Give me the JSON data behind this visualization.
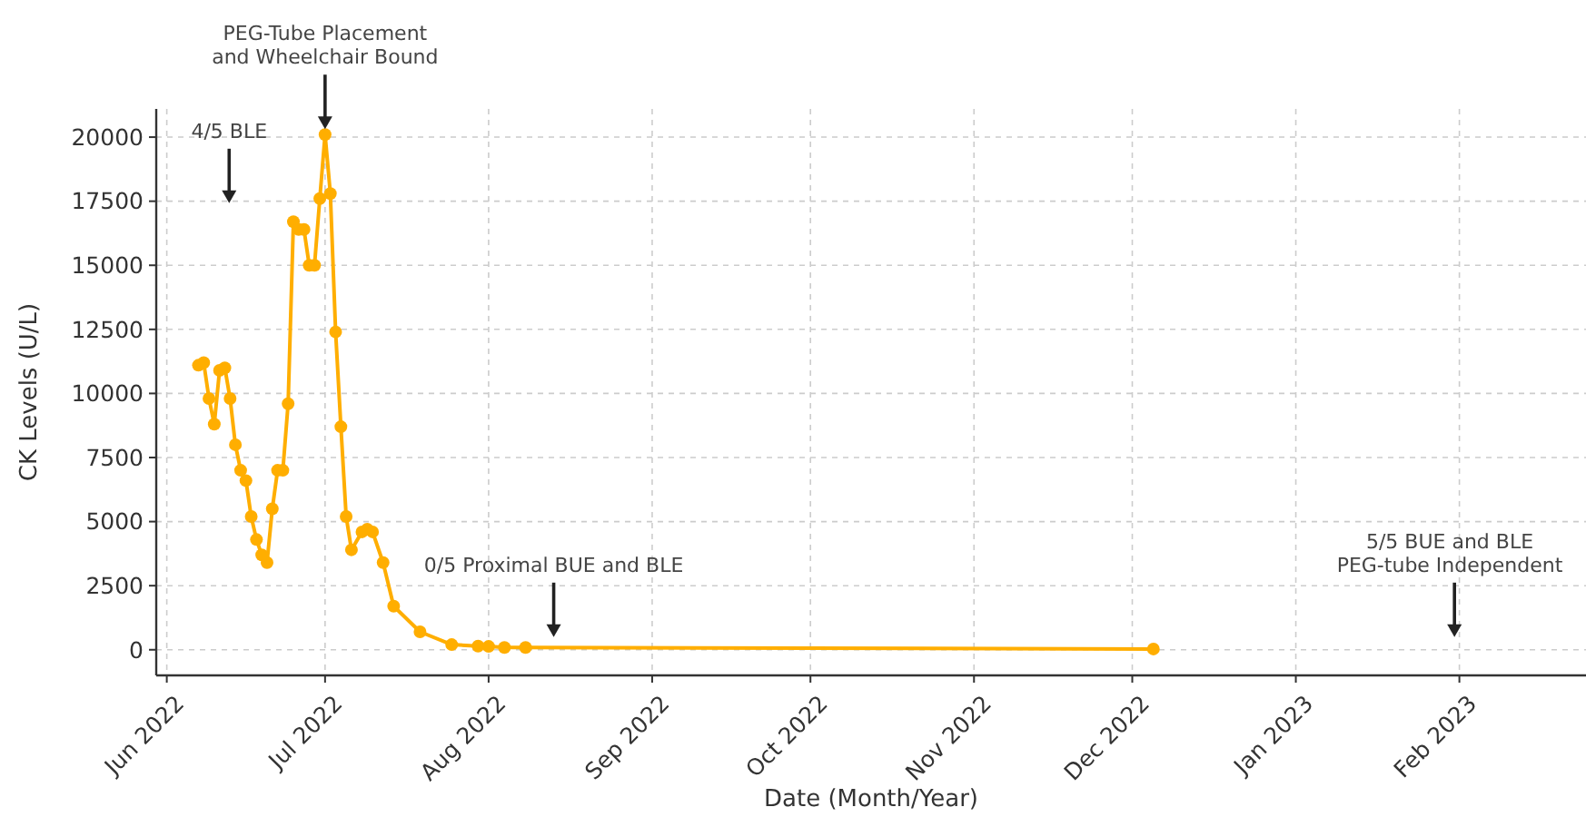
{
  "chart_data": {
    "type": "line",
    "xlabel": "Date (Month/Year)",
    "ylabel": "CK Levels (U/L)",
    "x": [
      "2022-06-07",
      "2022-06-08",
      "2022-06-09",
      "2022-06-10",
      "2022-06-11",
      "2022-06-12",
      "2022-06-13",
      "2022-06-14",
      "2022-06-15",
      "2022-06-16",
      "2022-06-17",
      "2022-06-18",
      "2022-06-19",
      "2022-06-20",
      "2022-06-21",
      "2022-06-22",
      "2022-06-23",
      "2022-06-24",
      "2022-06-25",
      "2022-06-26",
      "2022-06-27",
      "2022-06-28",
      "2022-06-29",
      "2022-06-30",
      "2022-07-01",
      "2022-07-02",
      "2022-07-03",
      "2022-07-04",
      "2022-07-05",
      "2022-07-06",
      "2022-07-08",
      "2022-07-09",
      "2022-07-10",
      "2022-07-12",
      "2022-07-14",
      "2022-07-19",
      "2022-07-25",
      "2022-07-30",
      "2022-08-01",
      "2022-08-04",
      "2022-08-08",
      "2022-12-05"
    ],
    "series": [
      {
        "color": "#ffae00",
        "values": [
          11100,
          11200,
          9800,
          8800,
          10900,
          11000,
          9800,
          8000,
          7000,
          6600,
          5200,
          4300,
          3700,
          3400,
          5500,
          7000,
          7000,
          9600,
          16700,
          16400,
          16400,
          15000,
          15000,
          17600,
          20100,
          17800,
          12400,
          8700,
          5200,
          3900,
          4600,
          4700,
          4600,
          3400,
          1700,
          700,
          200,
          140,
          130,
          90,
          90,
          30
        ]
      }
    ],
    "xlim": [
      "2022-05-30",
      "2023-02-25"
    ],
    "xticks": [
      {
        "value": "2022-06-01",
        "label": "Jun 2022"
      },
      {
        "value": "2022-07-01",
        "label": "Jul 2022"
      },
      {
        "value": "2022-08-01",
        "label": "Aug 2022"
      },
      {
        "value": "2022-09-01",
        "label": "Sep 2022"
      },
      {
        "value": "2022-10-01",
        "label": "Oct 2022"
      },
      {
        "value": "2022-11-01",
        "label": "Nov 2022"
      },
      {
        "value": "2022-12-01",
        "label": "Dec 2022"
      },
      {
        "value": "2023-01-01",
        "label": "Jan 2023"
      },
      {
        "value": "2023-02-01",
        "label": "Feb 2023"
      }
    ],
    "ylim": [
      -1000,
      21100
    ],
    "yticks": [
      0,
      2500,
      5000,
      7500,
      10000,
      12500,
      15000,
      17500,
      20000
    ],
    "grid": true,
    "marker": "circle",
    "line_style": "solid",
    "annotations": [
      {
        "text": "PEG-Tube Placement\nand Wheelchair Bound",
        "x": "2022-07-01",
        "y": 20100
      },
      "4/5 BLE",
      "0/5 Proximal BUE and BLE",
      "5/5 BUE and BLE\nPEG-tube Independent"
    ]
  }
}
